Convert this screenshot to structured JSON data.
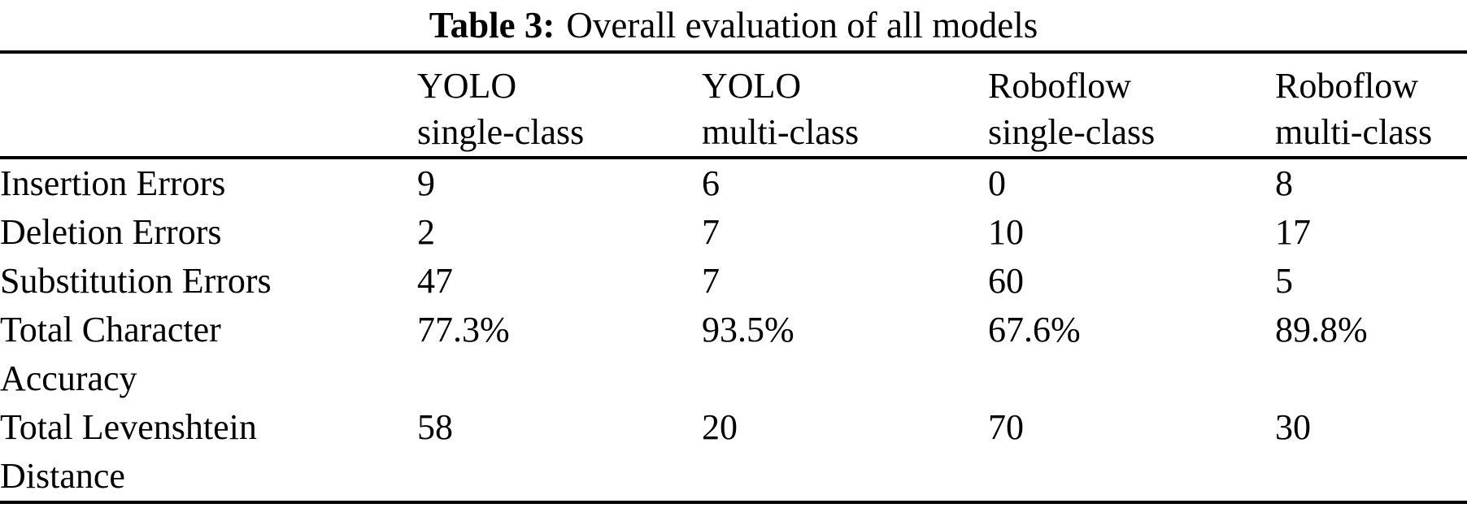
{
  "title": {
    "prefix": "Table 3:",
    "text": "Overall evaluation of all models"
  },
  "table": {
    "corner": "",
    "columns": [
      {
        "name": "YOLO",
        "variant": "single-class"
      },
      {
        "name": "YOLO",
        "variant": "multi-class"
      },
      {
        "name": "Roboflow",
        "variant": "single-class"
      },
      {
        "name": "Roboflow",
        "variant": "multi-class"
      }
    ],
    "rows": [
      {
        "label": "Insertion Errors",
        "values": [
          "9",
          "6",
          "0",
          "8"
        ]
      },
      {
        "label": "Deletion Errors",
        "values": [
          "2",
          "7",
          "10",
          "17"
        ]
      },
      {
        "label": "Substitution Errors",
        "values": [
          "47",
          "7",
          "60",
          "5"
        ]
      },
      {
        "label": "Total Character Accuracy",
        "values": [
          "77.3%",
          "93.5%",
          "67.6%",
          "89.8%"
        ]
      },
      {
        "label": "Total Levenshtein Distance",
        "values": [
          "58",
          "20",
          "70",
          "30"
        ]
      }
    ]
  },
  "colors": {
    "text": "#000000",
    "background": "#ffffff",
    "rule": "#000000"
  }
}
